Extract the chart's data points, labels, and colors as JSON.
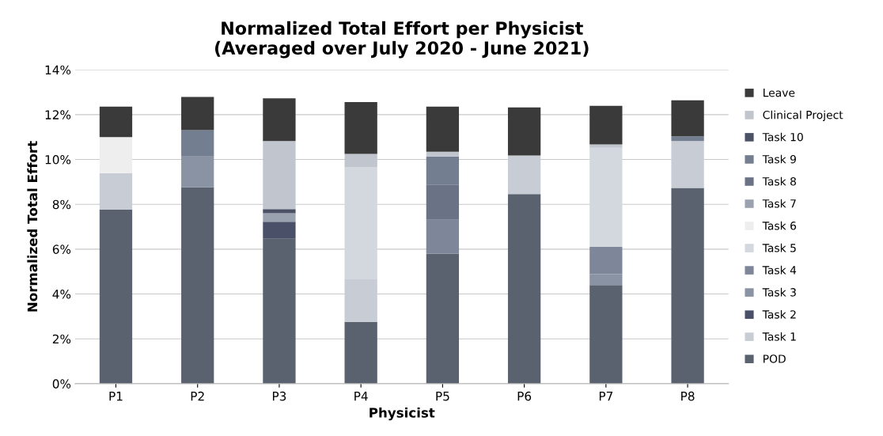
{
  "chart_data": {
    "type": "bar",
    "stacked": true,
    "title": "Normalized Total Effort per Physicist\n(Averaged over July 2020 - June 2021)",
    "xlabel": "Physicist",
    "ylabel": "Normalized Total Effort",
    "categories": [
      "P1",
      "P2",
      "P3",
      "P4",
      "P5",
      "P6",
      "P7",
      "P8"
    ],
    "ylim": [
      0,
      14
    ],
    "yticks": [
      {
        "value": 0,
        "label": "0%"
      },
      {
        "value": 2,
        "label": "2%"
      },
      {
        "value": 4,
        "label": "4%"
      },
      {
        "value": 6,
        "label": "6%"
      },
      {
        "value": 8,
        "label": "8%"
      },
      {
        "value": 10,
        "label": "10%"
      },
      {
        "value": 12,
        "label": "12%"
      },
      {
        "value": 14,
        "label": "14%"
      }
    ],
    "grid": "y",
    "legend": "right",
    "series": [
      {
        "name": "POD",
        "color": "#5a6270",
        "values": [
          7.76,
          8.76,
          6.46,
          2.76,
          5.79,
          8.46,
          4.4,
          8.73
        ]
      },
      {
        "name": "Task 1",
        "color": "#c8ccd4",
        "values": [
          1.63,
          null,
          null,
          1.92,
          null,
          1.72,
          null,
          2.09
        ]
      },
      {
        "name": "Task 2",
        "color": "#4a5068",
        "values": [
          null,
          null,
          0.76,
          null,
          null,
          null,
          null,
          null
        ]
      },
      {
        "name": "Task 3",
        "color": "#8a93a3",
        "values": [
          null,
          1.37,
          null,
          null,
          null,
          null,
          0.48,
          null
        ]
      },
      {
        "name": "Task 4",
        "color": "#7d8799",
        "values": [
          null,
          null,
          null,
          null,
          1.52,
          null,
          1.22,
          null
        ]
      },
      {
        "name": "Task 5",
        "color": "#d3d7de",
        "values": [
          null,
          null,
          null,
          4.97,
          null,
          null,
          4.42,
          null
        ]
      },
      {
        "name": "Task 6",
        "color": "#eeeeee",
        "values": [
          1.61,
          null,
          null,
          null,
          null,
          null,
          null,
          null
        ]
      },
      {
        "name": "Task 7",
        "color": "#9aa2b0",
        "values": [
          null,
          null,
          0.38,
          null,
          null,
          null,
          null,
          null
        ]
      },
      {
        "name": "Task 8",
        "color": "#6a7385",
        "values": [
          null,
          null,
          null,
          null,
          1.57,
          null,
          null,
          null
        ]
      },
      {
        "name": "Task 9",
        "color": "#737e90",
        "values": [
          null,
          1.18,
          null,
          null,
          1.25,
          null,
          null,
          0.21
        ]
      },
      {
        "name": "Task 10",
        "color": "#4b5266",
        "values": [
          null,
          null,
          0.19,
          null,
          null,
          null,
          null,
          null
        ]
      },
      {
        "name": "Clinical Project",
        "color": "#c0c5ce",
        "values": [
          null,
          null,
          3.03,
          0.6,
          0.21,
          null,
          0.15,
          null
        ]
      },
      {
        "name": "Leave",
        "color": "#3a3a3a",
        "values": [
          1.36,
          1.48,
          1.91,
          2.31,
          2.02,
          2.14,
          1.72,
          1.61
        ]
      }
    ]
  }
}
